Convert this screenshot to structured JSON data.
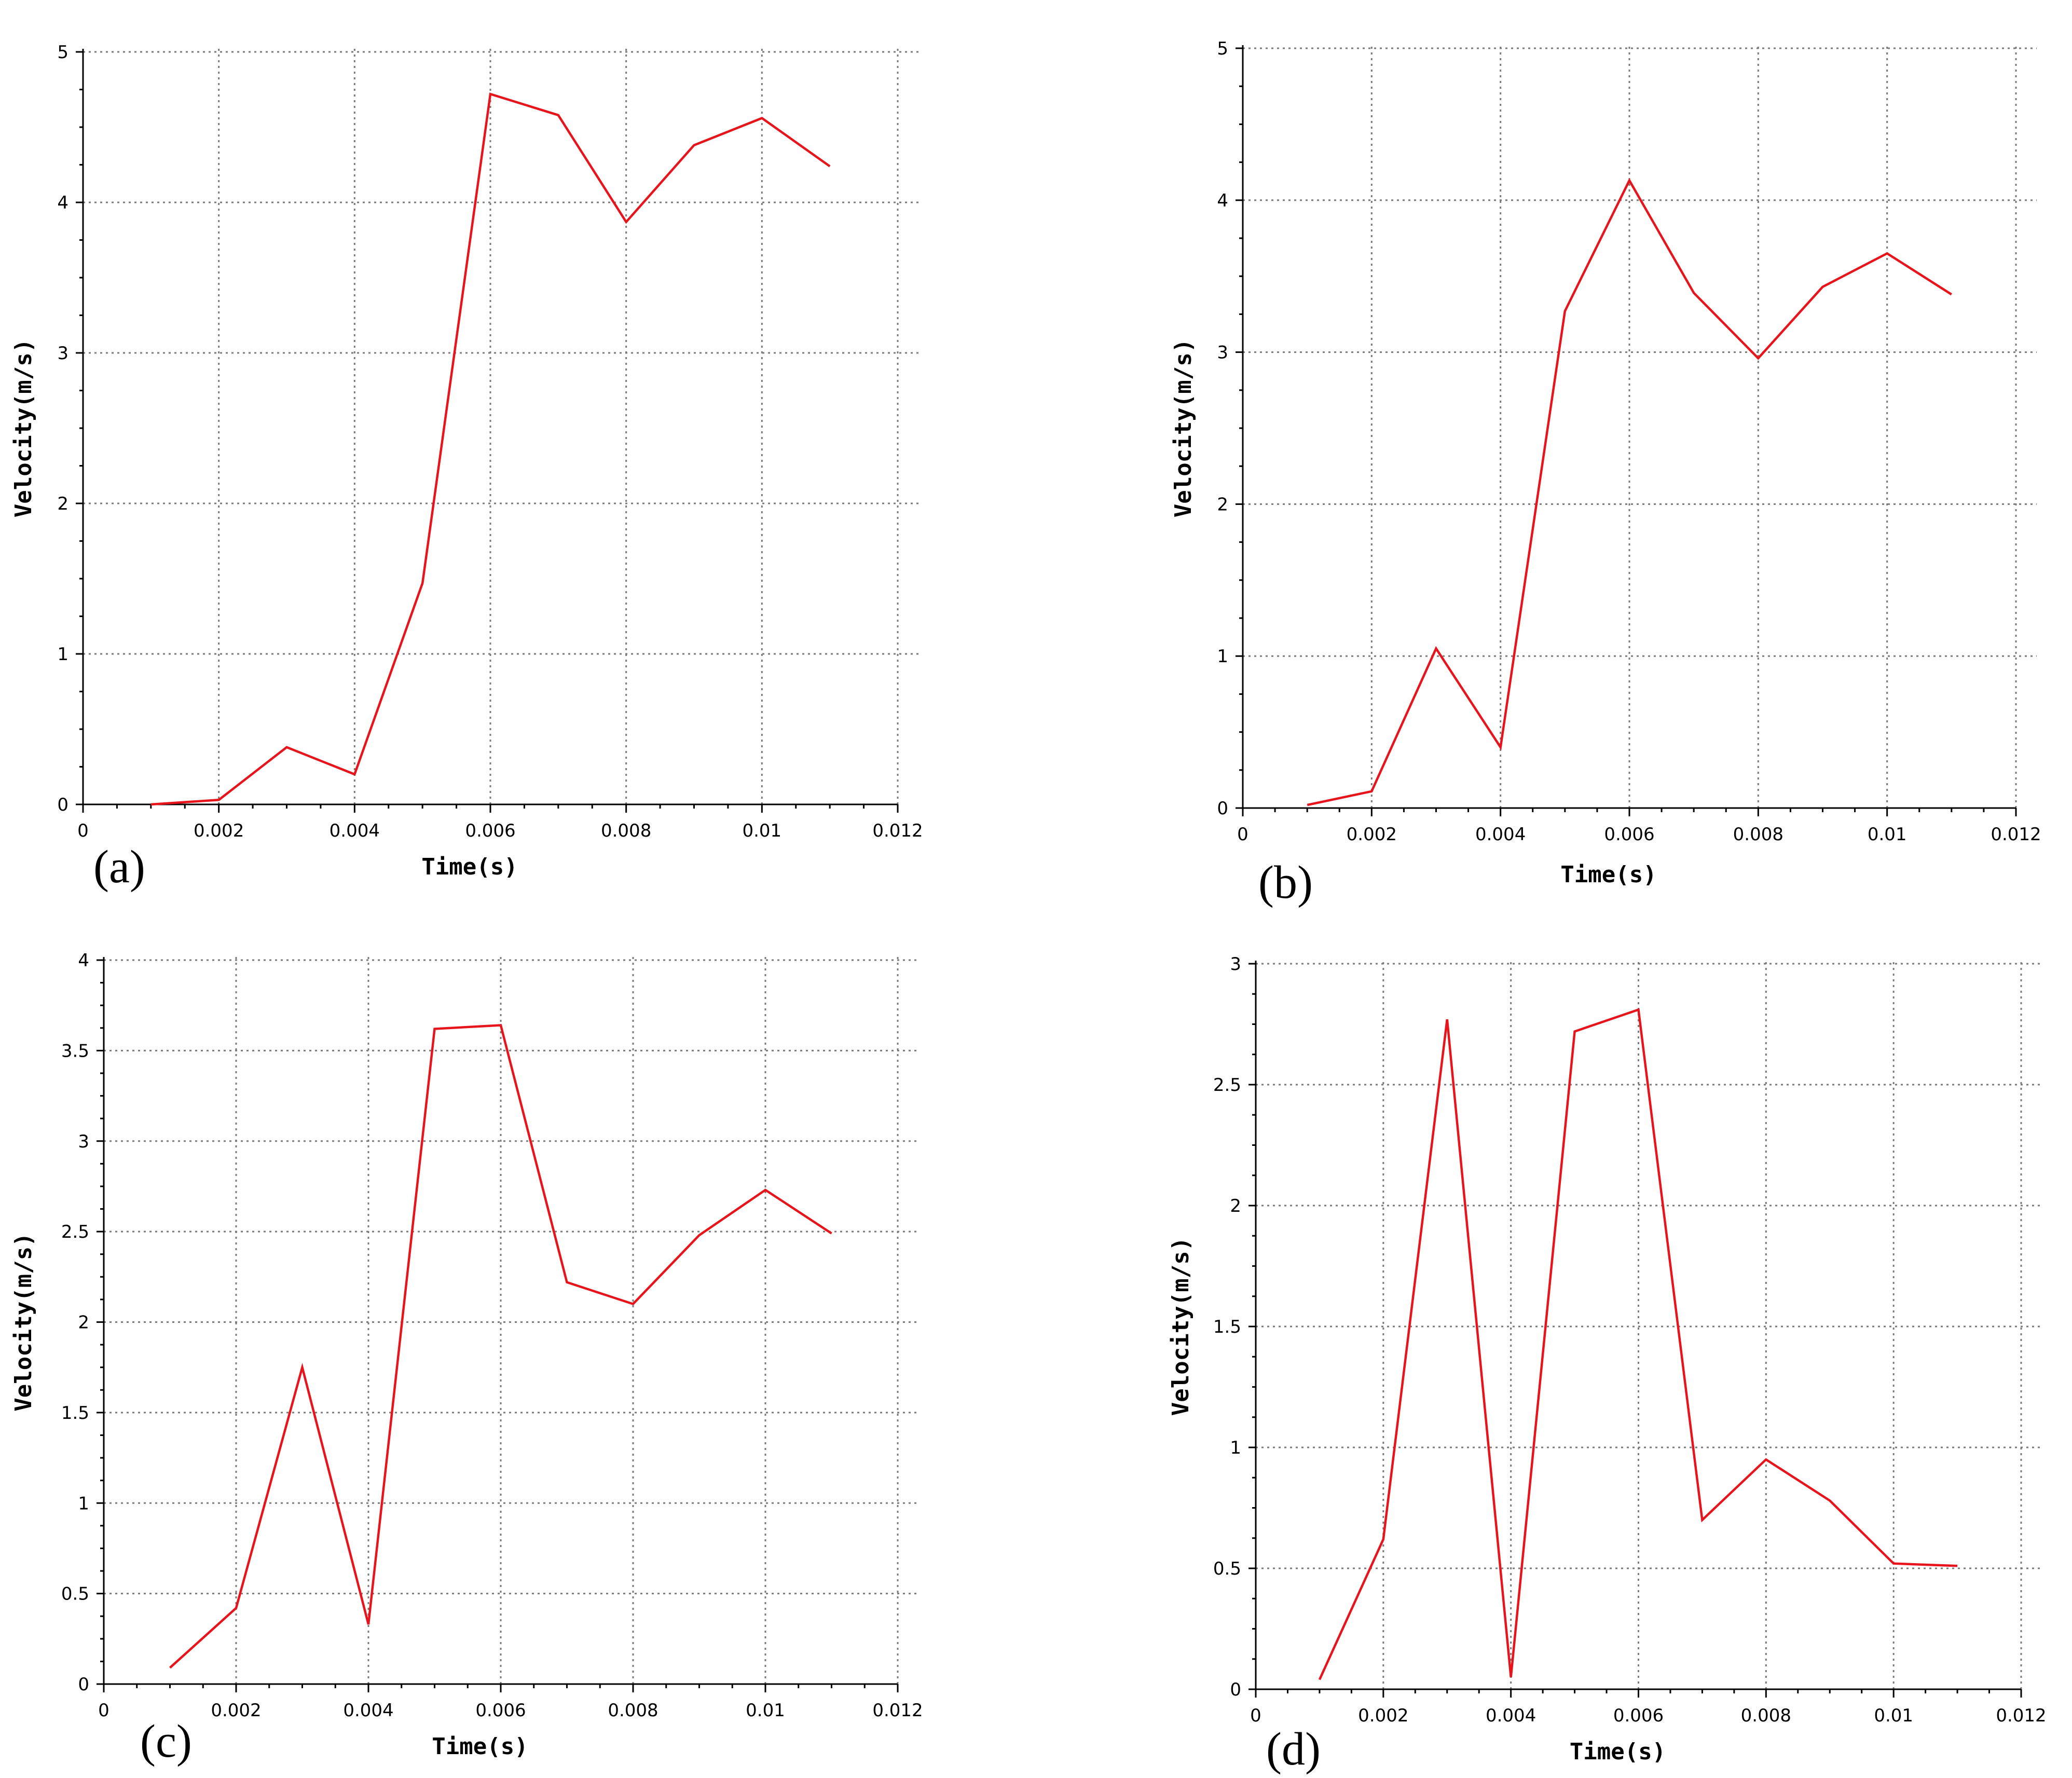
{
  "chart_data": [
    {
      "type": "line",
      "panel": "(a)",
      "xlabel": "Time(s)",
      "ylabel": "Velocity(m/s)",
      "xlim": [
        0,
        0.012
      ],
      "ylim": [
        0,
        5
      ],
      "xticks": [
        0,
        0.002,
        0.004,
        0.006,
        0.008,
        0.01,
        0.012
      ],
      "xtick_labels": [
        "0",
        "0.002",
        "0.004",
        "0.006",
        "0.008",
        "0.01",
        "0.012"
      ],
      "yticks": [
        0,
        1,
        2,
        3,
        4,
        5
      ],
      "ytick_labels": [
        "0",
        "1",
        "2",
        "3",
        "4",
        "5"
      ],
      "grid": true,
      "line_color": "#e8141b",
      "x": [
        0.001,
        0.002,
        0.003,
        0.004,
        0.005,
        0.006,
        0.007,
        0.008,
        0.009,
        0.01,
        0.011
      ],
      "y": [
        0.0,
        0.03,
        0.38,
        0.2,
        1.47,
        4.72,
        4.58,
        3.87,
        4.38,
        4.56,
        4.24
      ]
    },
    {
      "type": "line",
      "panel": "(b)",
      "xlabel": "Time(s)",
      "ylabel": "Velocity(m/s)",
      "xlim": [
        0,
        0.012
      ],
      "ylim": [
        0,
        5
      ],
      "xticks": [
        0,
        0.002,
        0.004,
        0.006,
        0.008,
        0.01,
        0.012
      ],
      "xtick_labels": [
        "0",
        "0.002",
        "0.004",
        "0.006",
        "0.008",
        "0.01",
        "0.012"
      ],
      "yticks": [
        0,
        1,
        2,
        3,
        4,
        5
      ],
      "ytick_labels": [
        "0",
        "1",
        "2",
        "3",
        "4",
        "5"
      ],
      "grid": true,
      "line_color": "#e8141b",
      "x": [
        0.001,
        0.002,
        0.003,
        0.004,
        0.005,
        0.006,
        0.007,
        0.008,
        0.009,
        0.01,
        0.011
      ],
      "y": [
        0.02,
        0.11,
        1.05,
        0.4,
        3.27,
        4.13,
        3.39,
        2.96,
        3.43,
        3.65,
        3.38
      ]
    },
    {
      "type": "line",
      "panel": "(c)",
      "xlabel": "Time(s)",
      "ylabel": "Velocity(m/s)",
      "xlim": [
        0,
        0.012
      ],
      "ylim": [
        0,
        4
      ],
      "xticks": [
        0,
        0.002,
        0.004,
        0.006,
        0.008,
        0.01,
        0.012
      ],
      "xtick_labels": [
        "0",
        "0.002",
        "0.004",
        "0.006",
        "0.008",
        "0.01",
        "0.012"
      ],
      "yticks": [
        0,
        0.5,
        1,
        1.5,
        2,
        2.5,
        3,
        3.5,
        4
      ],
      "ytick_labels": [
        "0",
        "0.5",
        "1",
        "1.5",
        "2",
        "2.5",
        "3",
        "3.5",
        "4"
      ],
      "grid": true,
      "line_color": "#e8141b",
      "x": [
        0.001,
        0.002,
        0.003,
        0.004,
        0.005,
        0.006,
        0.007,
        0.008,
        0.009,
        0.01,
        0.011
      ],
      "y": [
        0.09,
        0.42,
        1.75,
        0.33,
        3.62,
        3.64,
        2.22,
        2.1,
        2.48,
        2.73,
        2.49
      ]
    },
    {
      "type": "line",
      "panel": "(d)",
      "xlabel": "Time(s)",
      "ylabel": "Velocity(m/s)",
      "xlim": [
        0,
        0.012
      ],
      "ylim": [
        0,
        3
      ],
      "xticks": [
        0,
        0.002,
        0.004,
        0.006,
        0.008,
        0.01,
        0.012
      ],
      "xtick_labels": [
        "0",
        "0.002",
        "0.004",
        "0.006",
        "0.008",
        "0.01",
        "0.012"
      ],
      "yticks": [
        0,
        0.5,
        1,
        1.5,
        2,
        2.5,
        3
      ],
      "ytick_labels": [
        "0",
        "0.5",
        "1",
        "1.5",
        "2",
        "2.5",
        "3"
      ],
      "grid": true,
      "line_color": "#e8141b",
      "x": [
        0.001,
        0.002,
        0.003,
        0.004,
        0.005,
        0.006,
        0.007,
        0.008,
        0.009,
        0.01,
        0.011
      ],
      "y": [
        0.04,
        0.62,
        2.77,
        0.05,
        2.72,
        2.81,
        0.7,
        0.95,
        0.78,
        0.52,
        0.51
      ]
    }
  ]
}
